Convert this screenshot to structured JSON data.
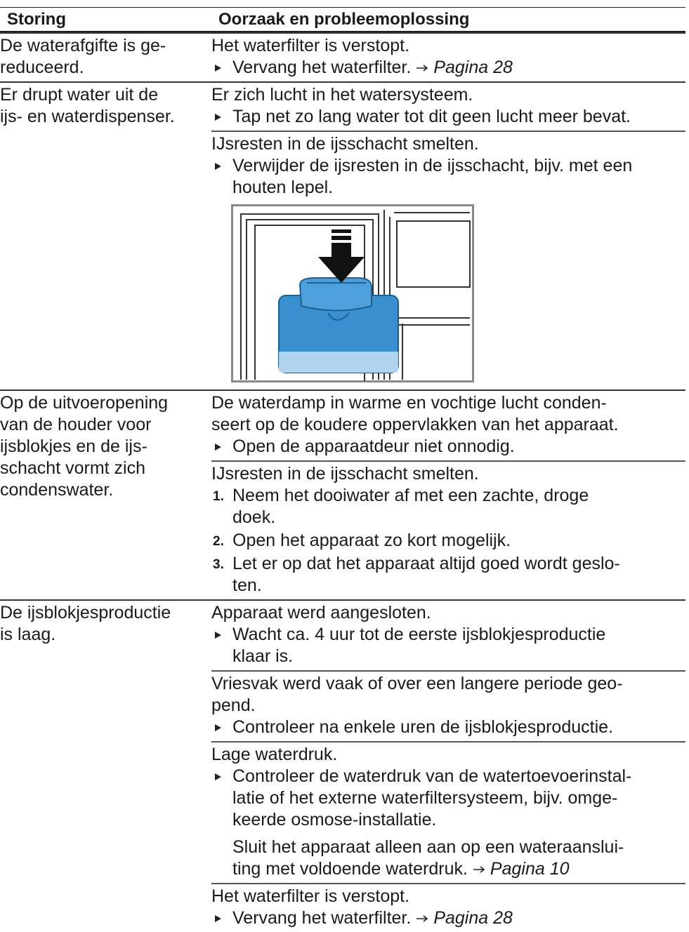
{
  "header": {
    "col1": "Storing",
    "col2": "Oorzaak en probleemoplossing"
  },
  "rows": [
    {
      "symptom": [
        "De waterafgifte is ge-",
        "reduceerd."
      ],
      "causes": [
        {
          "cause": [
            "Het waterfilter is verstopt."
          ],
          "steps": [
            {
              "lines": [
                "Vervang het waterfilter."
              ],
              "ref": "Pagina 28"
            }
          ]
        }
      ]
    },
    {
      "symptom": [
        "Er drupt water uit de",
        "ijs- en waterdispenser."
      ],
      "causes": [
        {
          "cause": [
            "Er zich lucht in het watersysteem."
          ],
          "steps": [
            {
              "lines": [
                "Tap net zo lang water tot dit geen lucht meer bevat."
              ]
            }
          ]
        },
        {
          "cause": [
            "IJsresten in de ijsschacht smelten."
          ],
          "steps": [
            {
              "lines": [
                "Verwijder de ijsresten in de ijsschacht, bijv. met een",
                "houten lepel."
              ]
            }
          ],
          "figure": true
        }
      ]
    },
    {
      "symptom": [
        "Op de uitvoeropening",
        "van de houder voor",
        "ijsblokjes en de ijs-",
        "schacht vormt zich",
        "condenswater."
      ],
      "causes": [
        {
          "cause": [
            "De waterdamp in warme en vochtige lucht conden-",
            "seert op de koudere oppervlakken van het apparaat."
          ],
          "steps": [
            {
              "lines": [
                "Open de apparaatdeur niet onnodig."
              ]
            }
          ]
        },
        {
          "cause": [
            "IJsresten in de ijsschacht smelten."
          ],
          "steps": [
            {
              "number": "1.",
              "lines": [
                "Neem het dooiwater af met een zachte, droge",
                "doek."
              ]
            },
            {
              "number": "2.",
              "lines": [
                "Open het apparaat zo kort mogelijk."
              ]
            },
            {
              "number": "3.",
              "lines": [
                "Let er op dat het apparaat altijd goed wordt geslo-",
                "ten."
              ]
            }
          ]
        }
      ]
    },
    {
      "symptom": [
        "De ijsblokjesproductie",
        "is laag."
      ],
      "causes": [
        {
          "cause": [
            "Apparaat werd aangesloten."
          ],
          "steps": [
            {
              "lines": [
                "Wacht ca. 4 uur tot de eerste ijsblokjesproductie",
                "klaar is."
              ]
            }
          ]
        },
        {
          "cause": [
            "Vriesvak werd vaak of over een langere periode geo-",
            "pend."
          ],
          "steps": [
            {
              "lines": [
                "Controleer na enkele uren de ijsblokjesproductie."
              ]
            }
          ]
        },
        {
          "cause": [
            "Lage waterdruk."
          ],
          "steps": [
            {
              "lines": [
                "Controleer de waterdruk van de watertoevoerinstal-",
                "latie of het externe waterfiltersysteem, bijv. omge-",
                "keerde osmose-installatie."
              ]
            }
          ],
          "notes": [
            {
              "lines": [
                "Sluit het apparaat alleen aan op een wateraanslui-",
                "ting met voldoende waterdruk."
              ],
              "ref": "Pagina 10"
            }
          ]
        },
        {
          "cause": [
            "Het waterfilter is verstopt."
          ],
          "steps": [
            {
              "lines": [
                "Vervang het waterfilter."
              ],
              "ref": "Pagina 28"
            }
          ]
        }
      ]
    }
  ]
}
